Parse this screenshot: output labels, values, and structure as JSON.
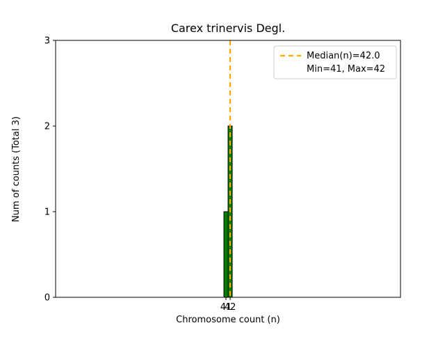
{
  "title": "Carex trinervis Degl.",
  "chart_data": {
    "type": "bar",
    "title": "Carex trinervis Degl.",
    "xlabel": "Chromosome count (n)",
    "ylabel": "Num of counts      (Total 3)",
    "categories": [
      41,
      42
    ],
    "values": [
      1,
      2
    ],
    "bar_width": 1,
    "xlim": [
      0,
      83
    ],
    "ylim": [
      0,
      3
    ],
    "x_ticks": [
      41,
      42
    ],
    "y_ticks": [
      0,
      1,
      2,
      3
    ],
    "grid": false,
    "total_counts": 3,
    "median": 42.0,
    "min": 41,
    "max": 42,
    "bar_color": "#008000",
    "bar_edge_color": "#000000",
    "median_line_color": "#ffa500",
    "legend": [
      "Median(n)=42.0",
      "Min=41, Max=42"
    ],
    "legend_position": "upper right"
  }
}
